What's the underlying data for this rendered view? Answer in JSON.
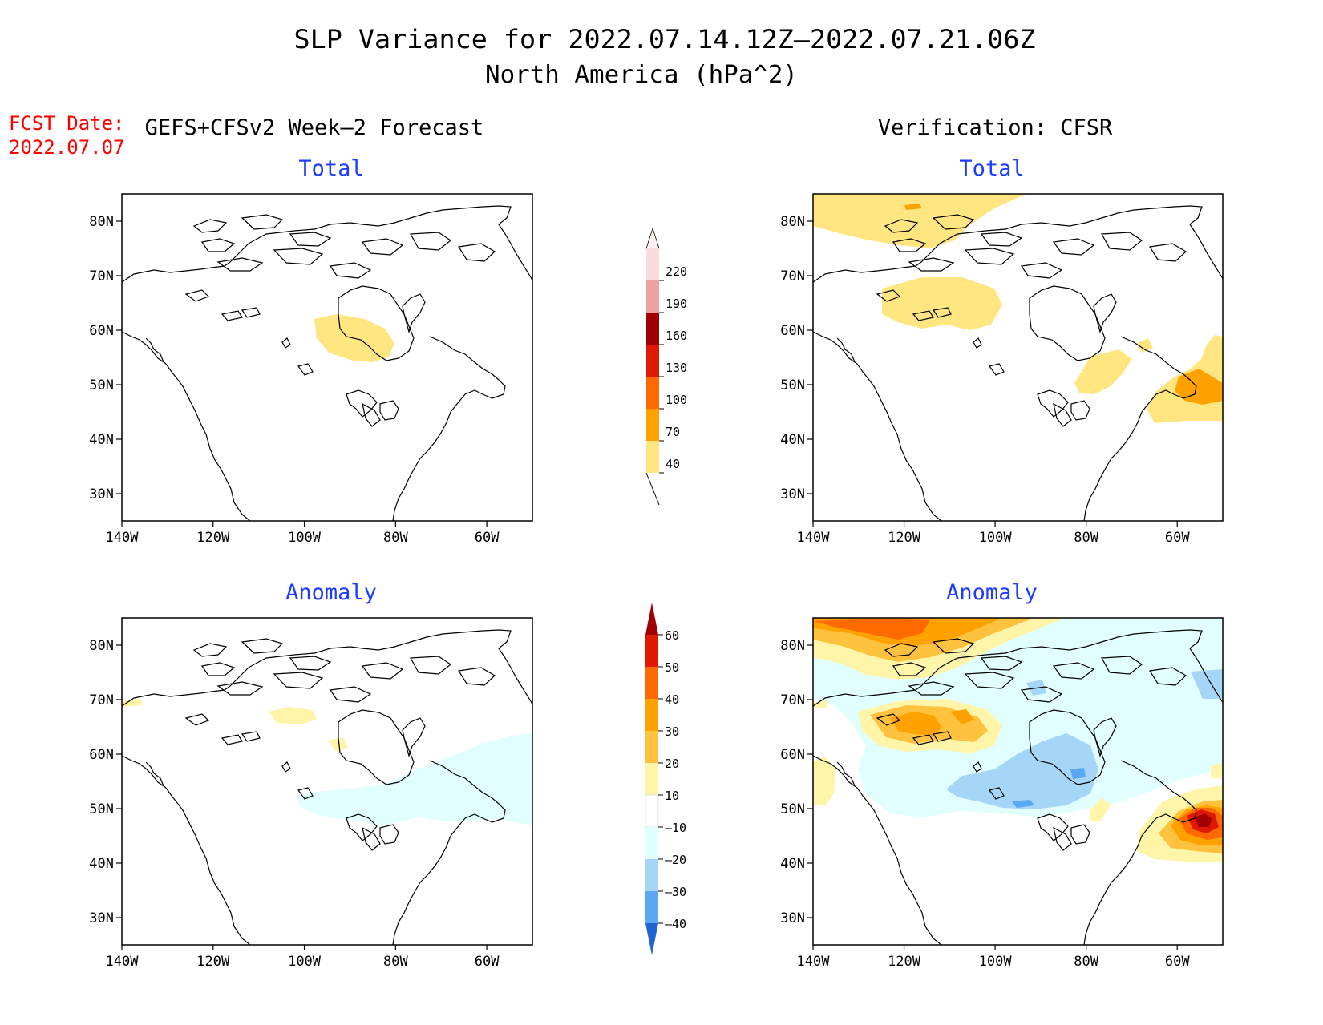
{
  "title": {
    "line1": "SLP Variance for 2022.07.14.12Z–2022.07.21.06Z",
    "line2": "North America (hPa^2)"
  },
  "fcst_date": {
    "label": "FCST Date:",
    "value": "2022.07.07"
  },
  "columns": {
    "forecast": "GEFS+CFSv2 Week–2 Forecast",
    "verification": "Verification: CFSR"
  },
  "panels": {
    "total": "Total",
    "anomaly": "Anomaly"
  },
  "axes": {
    "lat_ticks": [
      "80N",
      "70N",
      "60N",
      "50N",
      "40N",
      "30N"
    ],
    "lon_ticks": [
      "140W",
      "120W",
      "100W",
      "80W",
      "60W"
    ],
    "lat_values": [
      80,
      70,
      60,
      50,
      40,
      30
    ],
    "lon_values": [
      -140,
      -120,
      -100,
      -80,
      -60
    ],
    "lat_range": [
      25,
      85
    ],
    "lon_range": [
      -140,
      -50
    ]
  },
  "colorbar_total": {
    "labels": [
      "220",
      "190",
      "160",
      "130",
      "100",
      "70",
      "40"
    ],
    "colors": [
      "#fbdcdc",
      "#f2a1a1",
      "#a00000",
      "#e11800",
      "#ff6a00",
      "#ffa200",
      "#ffe680"
    ]
  },
  "colorbar_anomaly": {
    "labels": [
      "60",
      "50",
      "40",
      "30",
      "20",
      "10",
      "–10",
      "–20",
      "–30",
      "–40"
    ],
    "colors": [
      "#a00000",
      "#e11800",
      "#ff6a00",
      "#ffa200",
      "#ffc23e",
      "#fff5a8",
      "#ffffff",
      "#e1ffff",
      "#a6d6f7",
      "#5aa8f2",
      "#1e64d2"
    ]
  },
  "colors": {
    "title": "#000000",
    "fcst": "#ff0000",
    "subtitle": "#1e3cff",
    "coast": "#000000"
  }
}
